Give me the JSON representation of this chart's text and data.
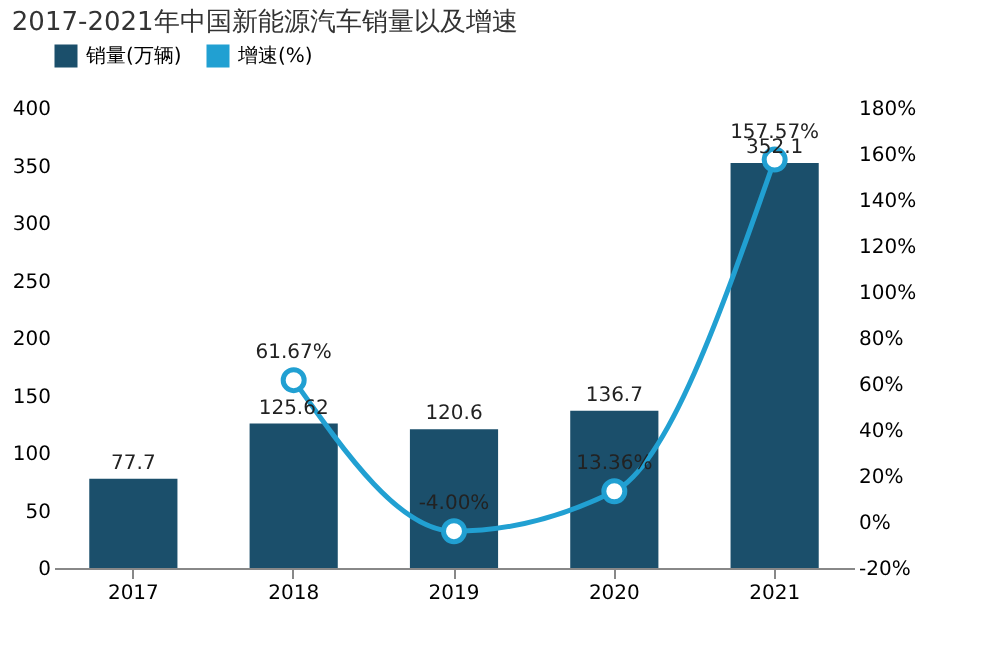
{
  "chart_data": {
    "type": "bar",
    "title": "2017-2021年中国新能源汽车销量以及增速",
    "categories": [
      "2017",
      "2018",
      "2019",
      "2020",
      "2021"
    ],
    "series": [
      {
        "name": "销量(万辆)",
        "color": "#1b4f6b",
        "values": [
          77.7,
          125.62,
          120.6,
          136.7,
          352.1
        ],
        "value_labels": [
          "77.7",
          "125.62",
          "120.6",
          "136.7",
          "352.1"
        ]
      },
      {
        "name": "增速(%)",
        "type": "line",
        "axis": "y2",
        "color": "#21a0d2",
        "marker": "circle",
        "values": [
          null,
          61.67,
          -4.0,
          13.36,
          157.57
        ],
        "value_labels": [
          null,
          "61.67%",
          "-4.00%",
          "13.36%",
          "157.57%"
        ]
      }
    ],
    "ylim": [
      0,
      400
    ],
    "yticks": [
      0,
      50,
      100,
      150,
      200,
      250,
      300,
      350,
      400
    ],
    "y2lim": [
      -20,
      180
    ],
    "y2ticks": [
      {
        "value": -20,
        "label": "-20%"
      },
      {
        "value": 0,
        "label": "0%"
      },
      {
        "value": 20,
        "label": "20%"
      },
      {
        "value": 40,
        "label": "40%"
      },
      {
        "value": 60,
        "label": "60%"
      },
      {
        "value": 80,
        "label": "80%"
      },
      {
        "value": 100,
        "label": "100%"
      },
      {
        "value": 120,
        "label": "120%"
      },
      {
        "value": 140,
        "label": "140%"
      },
      {
        "value": 160,
        "label": "160%"
      },
      {
        "value": 180,
        "label": "180%"
      }
    ],
    "legend": "top",
    "grid": false
  }
}
